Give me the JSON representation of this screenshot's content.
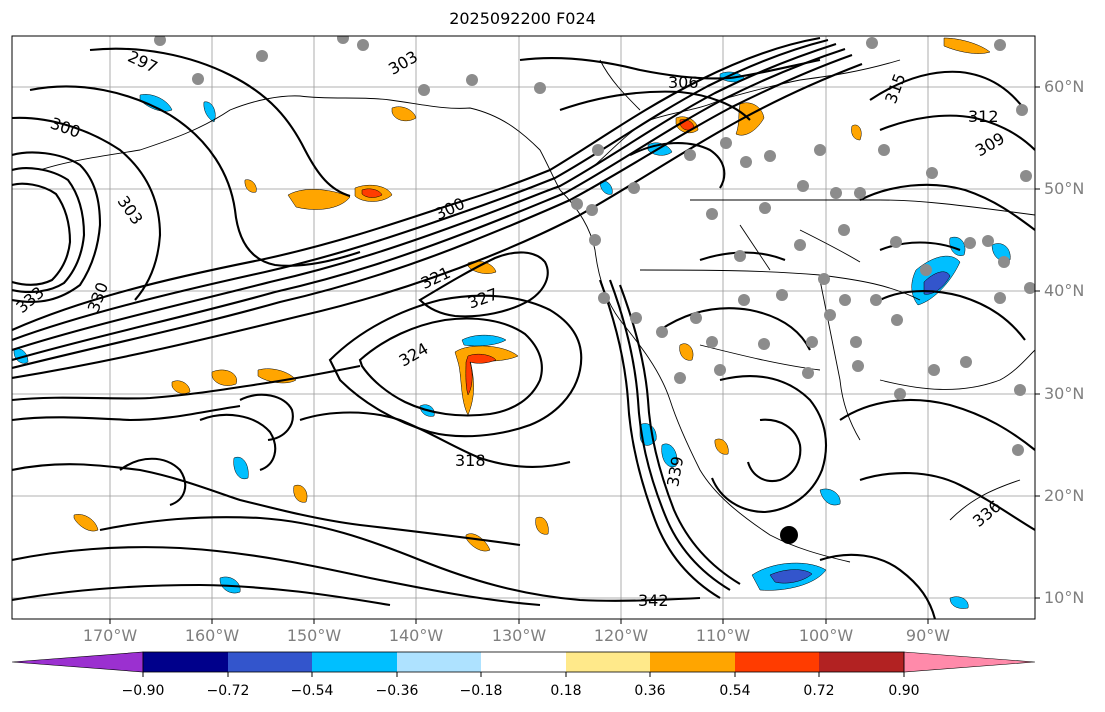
{
  "title": "2025092200 F024",
  "map": {
    "lat_labels": [
      "60°N",
      "50°N",
      "40°N",
      "30°N",
      "20°N",
      "10°N"
    ],
    "lon_labels": [
      "170°W",
      "160°W",
      "150°W",
      "140°W",
      "130°W",
      "120°W",
      "110°W",
      "100°W",
      "90°W"
    ],
    "contour_labels": [
      "306",
      "303",
      "300",
      "297",
      "315",
      "312",
      "309",
      "321",
      "324",
      "327",
      "330",
      "333",
      "318",
      "339",
      "342",
      "336",
      "303",
      "300"
    ]
  },
  "colorbar": {
    "ticks": [
      "−0.90",
      "−0.72",
      "−0.54",
      "−0.36",
      "−0.18",
      "0.18",
      "0.36",
      "0.54",
      "0.72",
      "0.90"
    ],
    "colors": [
      "#9b30d0",
      "#00008b",
      "#3355cc",
      "#00bfff",
      "#aee2ff",
      "#ffffff",
      "#ffe98a",
      "#ffa500",
      "#ff3c00",
      "#b22222",
      "#ff8aaa"
    ]
  }
}
